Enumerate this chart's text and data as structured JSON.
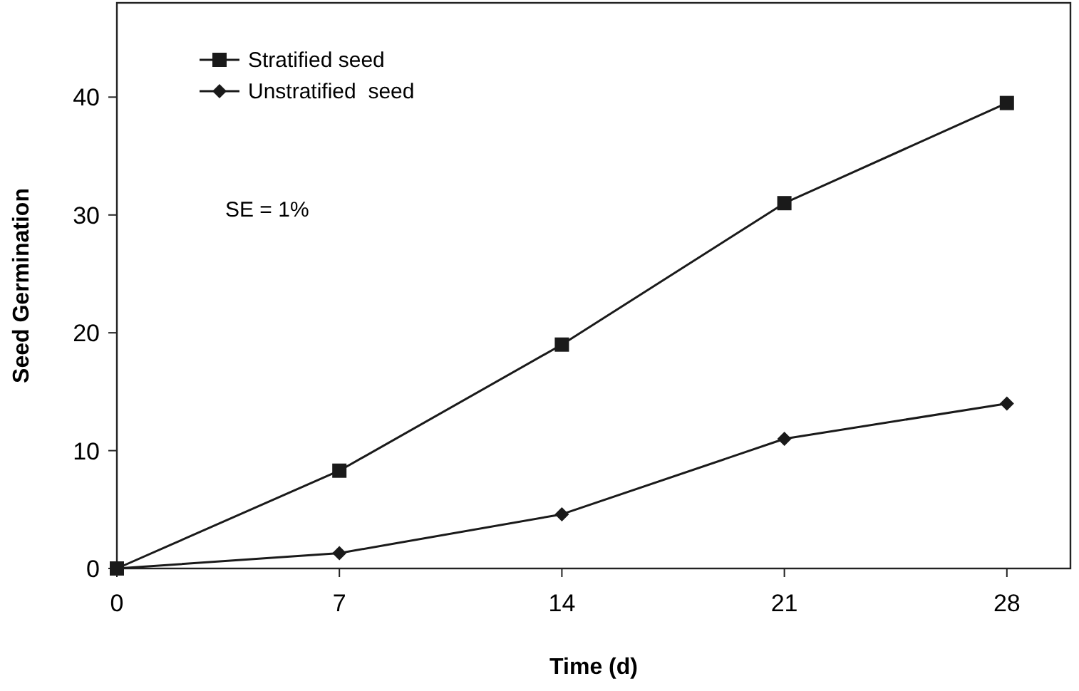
{
  "chart_data": {
    "type": "line",
    "xlabel": "Time (d)",
    "ylabel": "Seed Germination",
    "x": [
      0,
      7,
      14,
      21,
      28
    ],
    "series": [
      {
        "name": "Stratified seed",
        "color": "#1a1a1a",
        "marker": "square",
        "values": [
          0,
          8.3,
          19,
          31,
          39.5
        ]
      },
      {
        "name": "Unstratified  seed",
        "color": "#1a1a1a",
        "marker": "diamond",
        "values": [
          0,
          1.3,
          4.6,
          11,
          14
        ]
      }
    ],
    "xlim": [
      0,
      30
    ],
    "xticks": [
      0,
      7,
      14,
      21,
      28
    ],
    "ylim": [
      0,
      48
    ],
    "yticks": [
      0,
      10,
      20,
      30,
      40
    ],
    "annotations": [
      "SE = 1%"
    ],
    "legend": "top left",
    "grid": false
  }
}
